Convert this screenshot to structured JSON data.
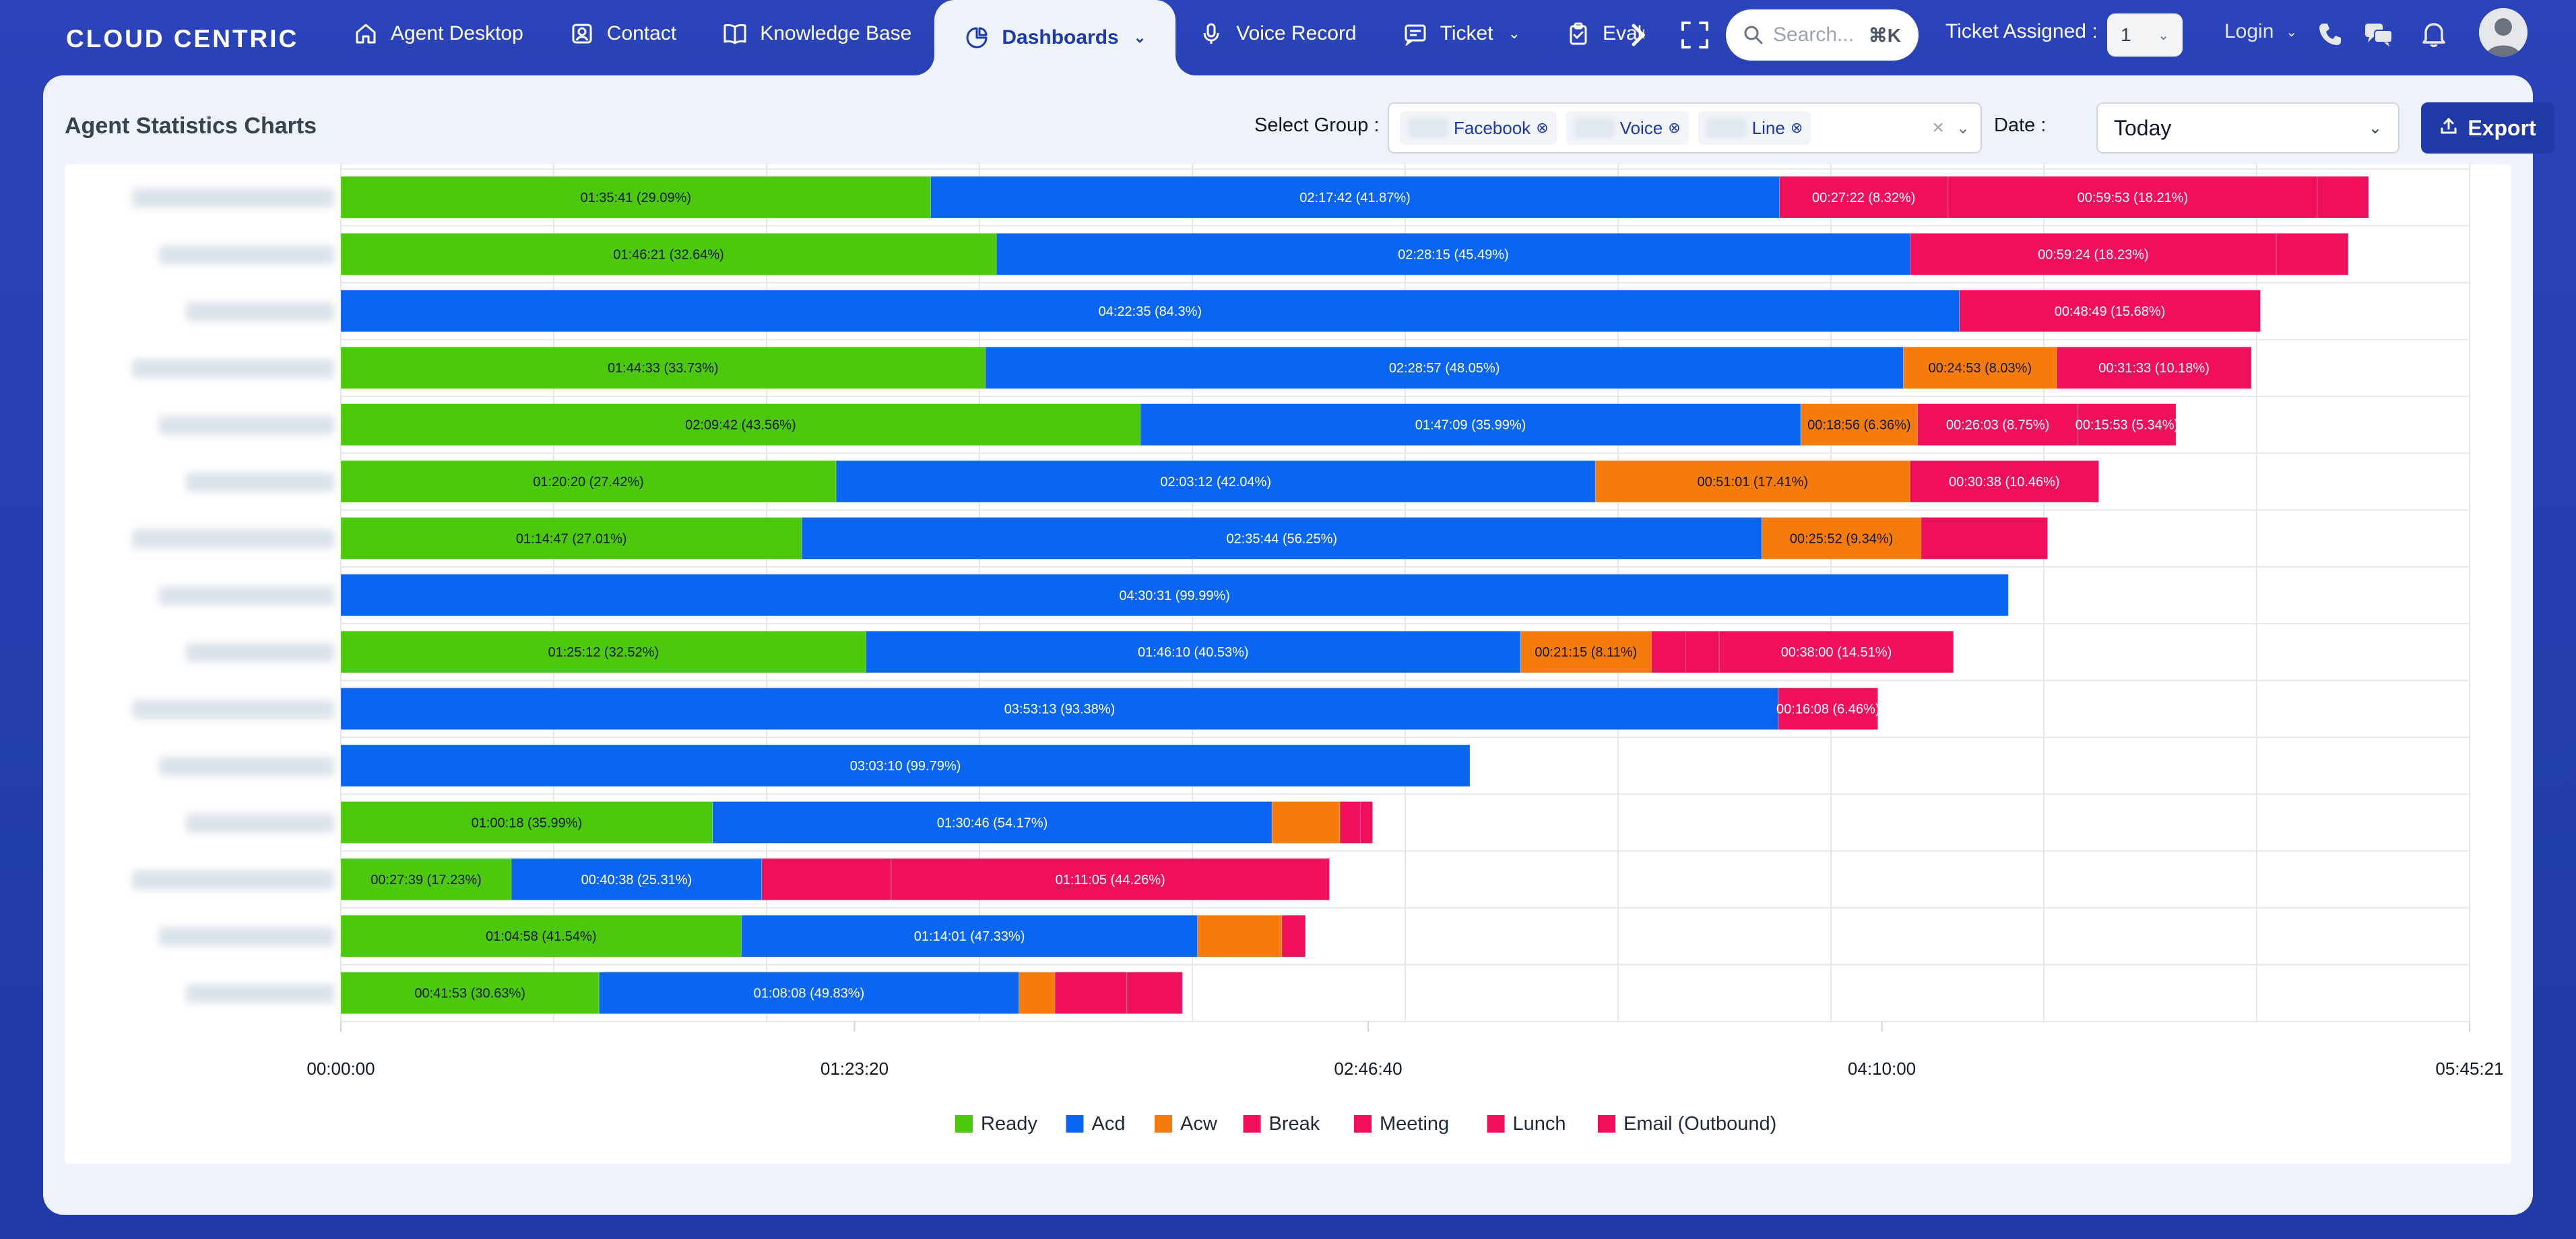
{
  "app": {
    "logo": "CLOUD CENTRIC"
  },
  "nav": {
    "items": [
      {
        "label": "Agent Desktop",
        "icon": "home-icon"
      },
      {
        "label": "Contact",
        "icon": "contact-icon"
      },
      {
        "label": "Knowledge Base",
        "icon": "book-icon"
      },
      {
        "label": "Dashboards",
        "icon": "pie-chart-icon",
        "active": true
      },
      {
        "label": "Voice Record",
        "icon": "microphone-icon"
      },
      {
        "label": "Ticket",
        "icon": "ticket-icon"
      },
      {
        "label": "Evalua",
        "icon": "clipboard-icon"
      }
    ],
    "more_label": "›"
  },
  "header": {
    "search_placeholder": "Search...",
    "search_shortcut": "⌘K",
    "ticket_assigned_label": "Ticket Assigned :",
    "ticket_assigned_value": "1",
    "login_label": "Login"
  },
  "page": {
    "title": "Agent Statistics Charts",
    "select_group_label": "Select Group :",
    "groups": [
      "Facebook",
      "Voice",
      "Line"
    ],
    "date_label": "Date :",
    "date_value": "Today",
    "export_label": "Export"
  },
  "colors": {
    "Ready": "#4cc90c",
    "Acd": "#0a66f0",
    "Acw": "#f57c0a",
    "Break": "#f0105a",
    "Meeting": "#f0105a",
    "Lunch": "#f0105a",
    "Email (Outbound)": "#f0105a"
  },
  "chart_data": {
    "type": "bar",
    "orientation": "horizontal",
    "stacked": true,
    "unit": "seconds",
    "x_ticks": [
      "00:00:00",
      "01:23:20",
      "02:46:40",
      "04:10:00",
      "05:45:21"
    ],
    "x_tick_values": [
      0,
      5000,
      10000,
      15000,
      20721
    ],
    "xlim": [
      0,
      20721
    ],
    "grid": true,
    "legend_position": "bottom",
    "series_names": [
      "Ready",
      "Acd",
      "Acw",
      "Break",
      "Meeting",
      "Lunch",
      "Email (Outbound)"
    ],
    "rows": [
      {
        "segments": [
          {
            "series": "Ready",
            "value": 5741,
            "label": "01:35:41 (29.09%)"
          },
          {
            "series": "Acd",
            "value": 8262,
            "label": "02:17:42 (41.87%)"
          },
          {
            "series": "Break",
            "value": 1642,
            "label": "00:27:22 (8.32%)"
          },
          {
            "series": "Meeting",
            "value": 3593,
            "label": "00:59:53 (18.21%)"
          },
          {
            "series": "Lunch",
            "value": 500,
            "label": ""
          }
        ]
      },
      {
        "segments": [
          {
            "series": "Ready",
            "value": 6381,
            "label": "01:46:21 (32.64%)"
          },
          {
            "series": "Acd",
            "value": 8895,
            "label": "02:28:15 (45.49%)"
          },
          {
            "series": "Meeting",
            "value": 3564,
            "label": "00:59:24 (18.23%)"
          },
          {
            "series": "Lunch",
            "value": 700,
            "label": ""
          }
        ]
      },
      {
        "segments": [
          {
            "series": "Acd",
            "value": 15755,
            "label": "04:22:35 (84.3%)"
          },
          {
            "series": "Break",
            "value": 2929,
            "label": "00:48:49 (15.68%)"
          }
        ]
      },
      {
        "segments": [
          {
            "series": "Ready",
            "value": 6273,
            "label": "01:44:33 (33.73%)"
          },
          {
            "series": "Acd",
            "value": 8937,
            "label": "02:28:57 (48.05%)"
          },
          {
            "series": "Acw",
            "value": 1493,
            "label": "00:24:53 (8.03%)"
          },
          {
            "series": "Break",
            "value": 1893,
            "label": "00:31:33 (10.18%)"
          }
        ]
      },
      {
        "segments": [
          {
            "series": "Ready",
            "value": 7782,
            "label": "02:09:42 (43.56%)"
          },
          {
            "series": "Acd",
            "value": 6429,
            "label": "01:47:09 (35.99%)"
          },
          {
            "series": "Acw",
            "value": 1136,
            "label": "00:18:56 (6.36%)"
          },
          {
            "series": "Break",
            "value": 1563,
            "label": "00:26:03 (8.75%)"
          },
          {
            "series": "Lunch",
            "value": 953,
            "label": "00:15:53 (5.34%)"
          }
        ]
      },
      {
        "segments": [
          {
            "series": "Ready",
            "value": 4820,
            "label": "01:20:20 (27.42%)"
          },
          {
            "series": "Acd",
            "value": 7392,
            "label": "02:03:12 (42.04%)"
          },
          {
            "series": "Acw",
            "value": 3061,
            "label": "00:51:01 (17.41%)"
          },
          {
            "series": "Break",
            "value": 1838,
            "label": "00:30:38 (10.46%)"
          }
        ]
      },
      {
        "segments": [
          {
            "series": "Ready",
            "value": 4487,
            "label": "01:14:47 (27.01%)"
          },
          {
            "series": "Acd",
            "value": 9344,
            "label": "02:35:44 (56.25%)"
          },
          {
            "series": "Acw",
            "value": 1552,
            "label": "00:25:52 (9.34%)"
          },
          {
            "series": "Break",
            "value": 1230,
            "label": ""
          }
        ]
      },
      {
        "segments": [
          {
            "series": "Acd",
            "value": 16231,
            "label": "04:30:31 (99.99%)"
          }
        ]
      },
      {
        "segments": [
          {
            "series": "Ready",
            "value": 5112,
            "label": "01:25:12 (32.52%)"
          },
          {
            "series": "Acd",
            "value": 6370,
            "label": "01:46:10 (40.53%)"
          },
          {
            "series": "Acw",
            "value": 1275,
            "label": "00:21:15 (8.11%)"
          },
          {
            "series": "Break",
            "value": 330,
            "label": ""
          },
          {
            "series": "Meeting",
            "value": 330,
            "label": ""
          },
          {
            "series": "Lunch",
            "value": 2280,
            "label": "00:38:00 (14.51%)"
          }
        ]
      },
      {
        "segments": [
          {
            "series": "Acd",
            "value": 13993,
            "label": "03:53:13 (93.38%)"
          },
          {
            "series": "Break",
            "value": 968,
            "label": "00:16:08 (6.46%)"
          }
        ]
      },
      {
        "segments": [
          {
            "series": "Acd",
            "value": 10990,
            "label": "03:03:10 (99.79%)"
          }
        ]
      },
      {
        "segments": [
          {
            "series": "Ready",
            "value": 3618,
            "label": "01:00:18 (35.99%)"
          },
          {
            "series": "Acd",
            "value": 5446,
            "label": "01:30:46 (54.17%)"
          },
          {
            "series": "Acw",
            "value": 660,
            "label": ""
          },
          {
            "series": "Break",
            "value": 200,
            "label": ""
          },
          {
            "series": "Meeting",
            "value": 118,
            "label": ""
          }
        ]
      },
      {
        "segments": [
          {
            "series": "Ready",
            "value": 1659,
            "label": "00:27:39 (17.23%)"
          },
          {
            "series": "Acd",
            "value": 2438,
            "label": "00:40:38 (25.31%)"
          },
          {
            "series": "Break",
            "value": 1260,
            "label": ""
          },
          {
            "series": "Meeting",
            "value": 4265,
            "label": "01:11:05 (44.26%)"
          }
        ]
      },
      {
        "segments": [
          {
            "series": "Ready",
            "value": 3898,
            "label": "01:04:58 (41.54%)"
          },
          {
            "series": "Acd",
            "value": 4441,
            "label": "01:14:01 (47.33%)"
          },
          {
            "series": "Acw",
            "value": 820,
            "label": ""
          },
          {
            "series": "Break",
            "value": 230,
            "label": ""
          }
        ]
      },
      {
        "segments": [
          {
            "series": "Ready",
            "value": 2513,
            "label": "00:41:53 (30.63%)"
          },
          {
            "series": "Acd",
            "value": 4088,
            "label": "01:08:08 (49.83%)"
          },
          {
            "series": "Acw",
            "value": 350,
            "label": ""
          },
          {
            "series": "Break",
            "value": 700,
            "label": ""
          },
          {
            "series": "Meeting",
            "value": 540,
            "label": ""
          }
        ]
      }
    ]
  }
}
